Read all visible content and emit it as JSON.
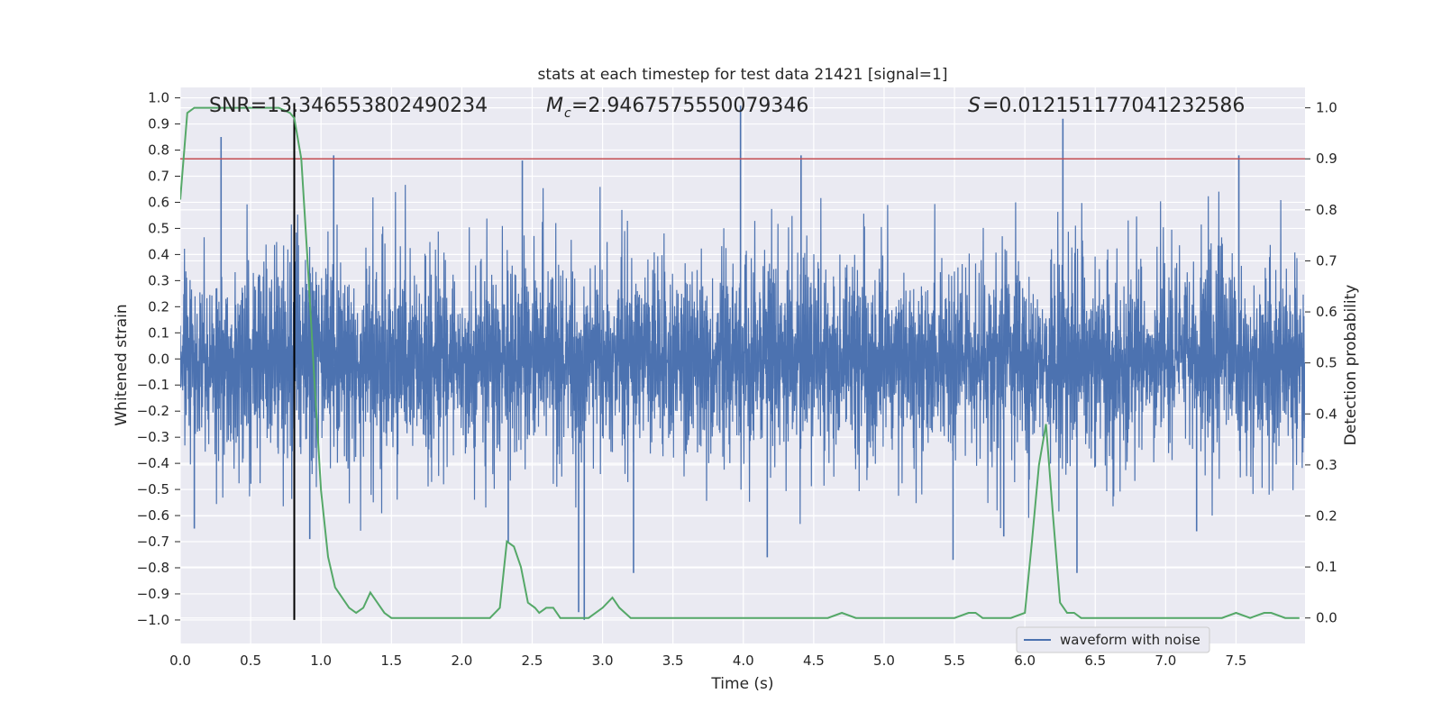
{
  "chart_data": {
    "type": "line",
    "title": "stats at each timestep for test data 21421 [signal=1]",
    "xlabel": "Time (s)",
    "ylabel_left": "Whitened strain",
    "ylabel_right": "Detection probability",
    "xlim": [
      0.0,
      7.99
    ],
    "ylim_left": [
      -1.09,
      1.04
    ],
    "ylim_right": [
      -0.05,
      1.04
    ],
    "x_ticks": [
      "0.0",
      "0.5",
      "1.0",
      "1.5",
      "2.0",
      "2.5",
      "3.0",
      "3.5",
      "4.0",
      "4.5",
      "5.0",
      "5.5",
      "6.0",
      "6.5",
      "7.0",
      "7.5"
    ],
    "y_left_ticks": [
      "1.0",
      "0.9",
      "0.8",
      "0.7",
      "0.6",
      "0.5",
      "0.4",
      "0.3",
      "0.2",
      "0.1",
      "0.0",
      "−0.1",
      "−0.2",
      "−0.3",
      "−0.4",
      "−0.5",
      "−0.6",
      "−0.7",
      "−0.8",
      "−0.9",
      "−1.0"
    ],
    "y_right_ticks": [
      "1.0",
      "0.9",
      "0.8",
      "0.7",
      "0.6",
      "0.5",
      "0.4",
      "0.3",
      "0.2",
      "0.1",
      "0.0"
    ],
    "annotations": {
      "snr": "SNR=13.346553802490234",
      "mc": "=2.9467575550079346",
      "mc_symbol": "M",
      "mc_subscript": "c",
      "s": "=0.012151177041232586",
      "s_symbol": "S"
    },
    "threshold": {
      "value": 0.9,
      "axis": "right"
    },
    "vline": {
      "x": 0.81
    },
    "series": [
      {
        "name": "waveform with noise",
        "axis": "left",
        "kind": "noise",
        "typical_amplitude": 0.38,
        "spikes": [
          {
            "x": 0.29,
            "y": 0.85
          },
          {
            "x": 1.09,
            "y": 0.78
          },
          {
            "x": 2.43,
            "y": 0.76
          },
          {
            "x": 3.98,
            "y": 0.97
          },
          {
            "x": 4.41,
            "y": 0.78
          },
          {
            "x": 6.27,
            "y": 0.92
          },
          {
            "x": 7.52,
            "y": 0.78
          },
          {
            "x": 0.1,
            "y": -0.65
          },
          {
            "x": 0.92,
            "y": -0.69
          },
          {
            "x": 2.87,
            "y": -1.0
          },
          {
            "x": 2.83,
            "y": -0.97
          },
          {
            "x": 3.22,
            "y": -0.82
          },
          {
            "x": 4.17,
            "y": -0.76
          },
          {
            "x": 5.49,
            "y": -0.77
          },
          {
            "x": 6.37,
            "y": -0.82
          },
          {
            "x": 7.22,
            "y": -0.66
          },
          {
            "x": 2.33,
            "y": -0.7
          },
          {
            "x": 5.85,
            "y": -0.68
          }
        ]
      },
      {
        "name": "detection probability",
        "axis": "right",
        "kind": "line",
        "x": [
          0.0,
          0.05,
          0.1,
          0.2,
          0.3,
          0.4,
          0.5,
          0.6,
          0.7,
          0.78,
          0.81,
          0.86,
          0.9,
          0.95,
          1.0,
          1.05,
          1.1,
          1.15,
          1.2,
          1.25,
          1.3,
          1.35,
          1.4,
          1.45,
          1.5,
          1.6,
          1.7,
          1.8,
          1.9,
          2.0,
          2.1,
          2.2,
          2.27,
          2.32,
          2.37,
          2.42,
          2.47,
          2.52,
          2.55,
          2.6,
          2.65,
          2.7,
          2.75,
          2.8,
          2.85,
          2.9,
          3.0,
          3.07,
          3.12,
          3.2,
          3.3,
          3.4,
          3.5,
          3.6,
          3.7,
          3.8,
          3.9,
          4.0,
          4.2,
          4.5,
          4.6,
          4.7,
          4.8,
          4.9,
          5.0,
          5.2,
          5.4,
          5.5,
          5.6,
          5.65,
          5.7,
          5.8,
          5.9,
          6.0,
          6.05,
          6.1,
          6.15,
          6.2,
          6.25,
          6.3,
          6.35,
          6.4,
          6.5,
          6.6,
          6.8,
          7.0,
          7.2,
          7.4,
          7.5,
          7.6,
          7.7,
          7.75,
          7.85,
          7.95
        ],
        "values": [
          0.82,
          0.99,
          1.0,
          1.0,
          1.0,
          1.0,
          1.0,
          1.0,
          1.0,
          0.99,
          0.98,
          0.9,
          0.72,
          0.48,
          0.25,
          0.12,
          0.06,
          0.04,
          0.02,
          0.01,
          0.02,
          0.05,
          0.03,
          0.01,
          0.0,
          0.0,
          0.0,
          0.0,
          0.0,
          0.0,
          0.0,
          0.0,
          0.02,
          0.15,
          0.14,
          0.1,
          0.03,
          0.02,
          0.01,
          0.02,
          0.02,
          0.0,
          0.0,
          0.0,
          0.0,
          0.0,
          0.02,
          0.04,
          0.02,
          0.0,
          0.0,
          0.0,
          0.0,
          0.0,
          0.0,
          0.0,
          0.0,
          0.0,
          0.0,
          0.0,
          0.0,
          0.01,
          0.0,
          0.0,
          0.0,
          0.0,
          0.0,
          0.0,
          0.01,
          0.01,
          0.0,
          0.0,
          0.0,
          0.01,
          0.15,
          0.3,
          0.38,
          0.2,
          0.03,
          0.01,
          0.01,
          0.0,
          0.0,
          0.0,
          0.0,
          0.0,
          0.0,
          0.0,
          0.01,
          0.0,
          0.01,
          0.01,
          0.0,
          0.0
        ]
      }
    ],
    "legend": {
      "entries": [
        "waveform with noise"
      ],
      "placement": "bottom-right"
    },
    "colors": {
      "background": "#eaeaf2",
      "grid": "#ffffff",
      "waveform": "#4c72b0",
      "probability": "#55a868",
      "threshold": "#c44e52",
      "vline": "#000000"
    }
  }
}
